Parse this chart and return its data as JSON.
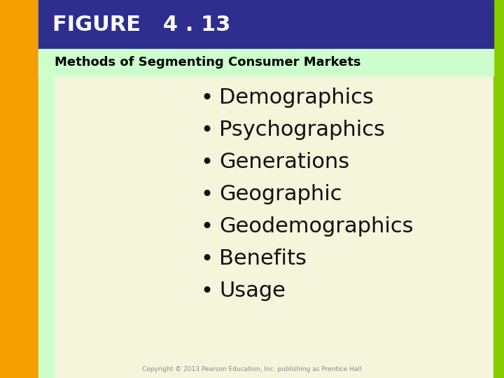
{
  "figure_label": "FIGURE   4 . 13",
  "subtitle": "Methods of Segmenting Consumer Markets",
  "bullet_items": [
    "Demographics",
    "Psychographics",
    "Generations",
    "Geographic",
    "Geodemographics",
    "Benefits",
    "Usage"
  ],
  "bg_color": "#f5f5dc",
  "header_bg": "#2e2e8f",
  "header_text_color": "#ffffff",
  "subtitle_bg": "#ccffcc",
  "subtitle_text_color": "#000000",
  "left_orange_color": "#f5a000",
  "left_green_color": "#ccffcc",
  "right_green_color": "#88cc00",
  "bullet_text_color": "#111111",
  "copyright_text": "Copyright © 2013 Pearson Education, Inc. publishing as Prentice Hall",
  "copyright_color": "#888888"
}
